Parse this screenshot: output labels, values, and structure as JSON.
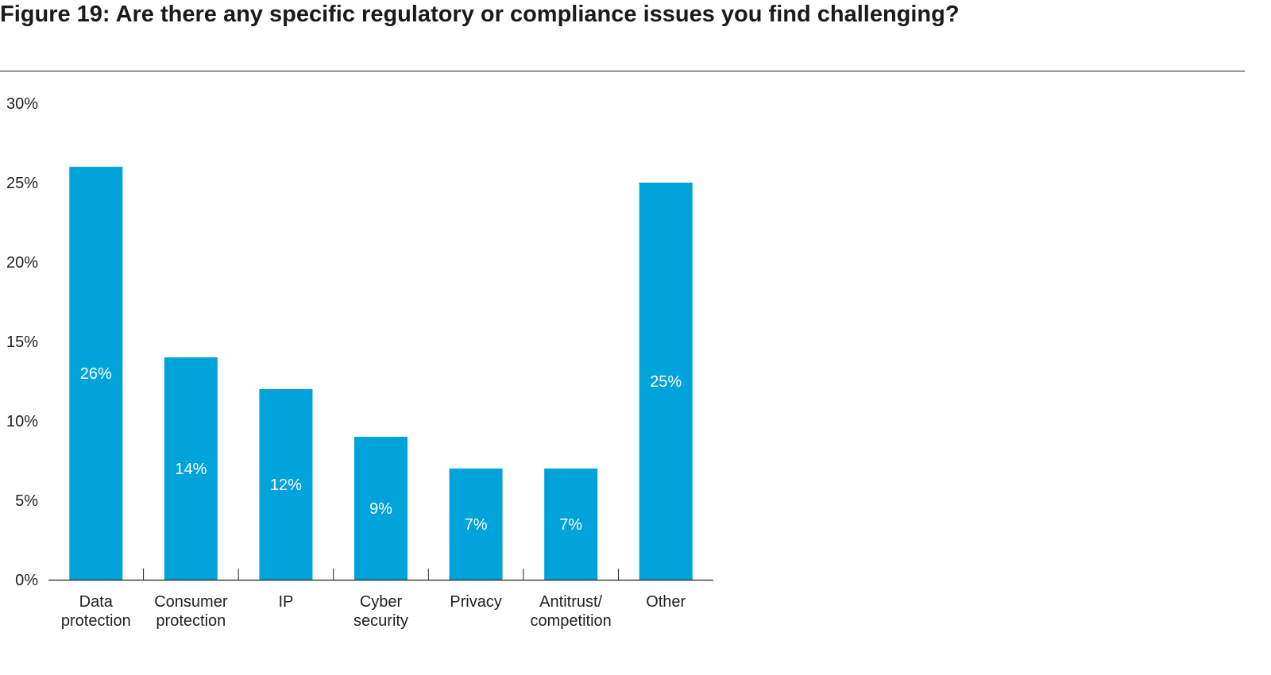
{
  "title": "Figure 19: Are there any specific regulatory or compliance issues you find challenging?",
  "colors": {
    "bar": "#00a3da",
    "text": "#222222",
    "bar_label": "#ffffff",
    "axis": "#222222"
  },
  "chart_data": {
    "type": "bar",
    "categories": [
      [
        "Data",
        "protection"
      ],
      [
        "Consumer",
        "protection"
      ],
      [
        "IP"
      ],
      [
        "Cyber",
        "security"
      ],
      [
        "Privacy"
      ],
      [
        "Antitrust/",
        "competition"
      ],
      [
        "Other"
      ]
    ],
    "values": [
      26,
      14,
      12,
      9,
      7,
      7,
      25
    ],
    "data_labels": [
      "26%",
      "14%",
      "12%",
      "9%",
      "7%",
      "7%",
      "25%"
    ],
    "yticks": [
      0,
      5,
      10,
      15,
      20,
      25,
      30
    ],
    "ytick_labels": [
      "0%",
      "5%",
      "10%",
      "15%",
      "20%",
      "25%",
      "30%"
    ],
    "ylim": [
      0,
      30
    ],
    "grid": false,
    "legend": "none"
  }
}
